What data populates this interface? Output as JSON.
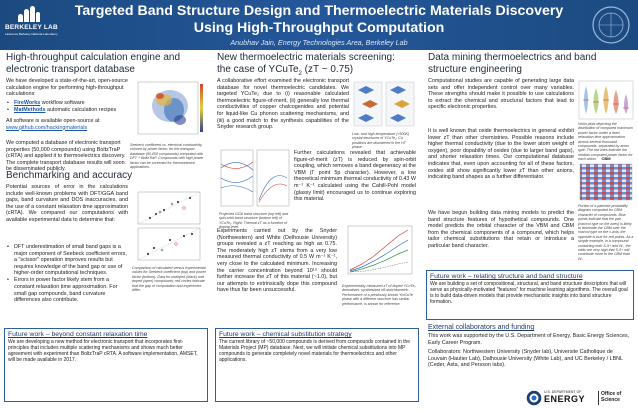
{
  "header": {
    "logo_name": "BERKELEY LAB",
    "logo_sub": "Lawrence Berkeley National Laboratory",
    "title_line1": "Targeted Band Structure Design and Thermoelectric Materials Discovery",
    "title_line2": "Using High-Throughput Computation",
    "subtitle": "Anubhav Jain, Energy Technologies Area, Berkeley Lab"
  },
  "col1": {
    "title_line1": "High-throughput calculation engine and",
    "title_line2": "electronic transport database",
    "intro": "We have developed a state-of-the-art, open-source calculation engine for performing high-throughput calculations:",
    "software": [
      {
        "name": "FireWorks",
        "desc": " workflow software"
      },
      {
        "name": "MatMethods",
        "desc": " automatic calculation recipes"
      }
    ],
    "available": "All software is available open-source at ",
    "github": "www.github.com/hackingmaterials",
    "database": "We computed a database of electronic transport properties (50,000 compounds) using BoltzTraP (cRTA) and applied it to thermoelectrics discovery. The complete transport database results will soon be disseminated publicly.",
    "fig1_caption": "Seebeck coefficient vs. electrical conductivity, colored by power factor, for the transport database (50,000 compounds) computed with DFT + BoltzTraP. Compounds with high power factor can be screened for thermoelectric applications.",
    "bench_title": "Benchmarking and accuracy",
    "bench_text": "Potential sources of error in the calculations include well-known problems with DFT/GGA band gaps, band curvature and DOS inaccuracies, and the use of a constant relaxation time approximation (cRTA). We compared our computations with available experimental data to determine that:",
    "bench_points": [
      "DFT underestimation of small band gaps is a major component of Seebeck coefficient errors, a \"scissor\" operation improves results but requires knowledge of the band gap or use of higher-order computational techniques.",
      "Errors in power factor likely stem from a constant relaxation time approximation. For small gap compounds, band curvature differences also contribute."
    ],
    "fig2_caption": "Comparison of calculated versus experimental values for Seebeck coefficient (top) and power factor (bottom). Data for undoped (black) and doped (open) compounds; red circles indicate that the gap of computation and experiment differ.",
    "future_title": "Future work – beyond constant relaxation time",
    "future_text": "We are developing a new method for electronic transport that incorporates first-principles that includes multiple scattering mechanisms and shows much better agreement with experiment than BoltzTraP cRTA. A software implementation, AMSET, will be made available in 2017."
  },
  "col2": {
    "title_line1": "New thermoelectric materials screening:",
    "title_line2_a": "the case of YCuTe",
    "title_sub": "2",
    "title_line2_b": " (zT ~ 0.75)",
    "intro": "A collaborative effort examined the electronic transport database for novel thermoelectric candidates. We targeted YCuTe₂ due to (i) reasonable calculated thermoelectric figure-of-merit, (ii) generally low thermal conductivities of copper chalcogenides and potential for liquid-like Cu phonon scattering mechanisms, and (iii) a good match to the synthesis capabilities of the Snyder research group.",
    "fig_struct_caption": "Low- and high-temperature (>500K) crystal structures of YCuTe₂. Cu positions are disordered in the HT phase.",
    "further": "Further calculations revealed that achievable figure-of-merit (zT) is reduced by spin-orbit coupling, which removes a band degeneracy at the VBM (Γ point 5p character). However, a low theoretical minimum thermal conductivity of 0.43 W m⁻¹ K⁻¹ calculated using the Cahill-Pohl model (glassy limit) encouraged us to continue exploring this material.",
    "fig_band_caption": "Projected GGA band structure (top left) and spin-orbit band structure (bottom left) of YCuTe₂. Right: Thermal zT as a function of doping level.",
    "experiments": "Experiments carried out by the Snyder (Northwestern) and White (Delhousie University) groups revealed a zT reaching as high as 0.75. The moderately high zT stems from a very low measured thermal conductivity of 0.5 W m⁻¹ K⁻¹, very close to the calculated minimum. Increasing the carrier concentration beyond 10¹⁹ should further increase the zT of this material (~1.0), but our attempts to extrinsically dope this compound have thus far been unsuccessful.",
    "fig_zt_caption": "Experimentally measured zT of doped YCuTe₂ derivatives, synthesized off-stoichiometric. Performance of a previously known YmCuTe phase with a different structure has similar performance, is shown for reference.",
    "future_title": "Future work – chemical substitution strategy",
    "future_text": "The current library of ~50,000 compounds is derived from compounds contained in the Materials Project (MP) database. Next, we will initiate chemical substitutions into MP compounds to generate completely novel materials for thermoelectrics and other applications."
  },
  "col3": {
    "title_line1": "Data mining thermoelectrics and band",
    "title_line2": "structure engineering",
    "intro": "Computational studies are capable of generating large data sets and offer independent control over many variables. These strengths should make it possible to use calculations to extract the chemical and structural factors that lead to specific electronic properties.",
    "oxide": "It is well known that oxide thermoelectrics in general exhibit lower zT than other chemistries. Possible reasons include higher thermal conductivity (due to the lower atom weight of oxygen), poor dopability of oxides (due to larger band gaps), and shorter relaxation times. Our computational database indicates that, even upon accounting for all of these factors, oxides still show significantly lower zT than other anions, indicating band shapes as a further differentiator.",
    "cbm": "We have begun building data mining models to predict the band structure features of hypothetical compounds. One model predicts the orbital character of the VBM and CBM from the chemical components of a compound, which helps tailor chemical substitutions that retain or introduce a particular band character.",
    "fig_violin_caption": "Violin plots depicting the distribution of computed maximum power factor under a fixed relaxation time approximation across several thousand compounds, separated by anion type. The red lines indicate the median computed power factor for each anion.",
    "heat_label": "CBM",
    "fig_heat_caption": "Portion of a pairwise probability diagram computed for CBM character of compounds. Blue points indicate that the pair (row/col type on the axes) is likely to dominate the CBM over the row/col type on the x-axis; the opposite is true for red points. As a simple example, in a compound containing both S-5+ and W-, the odds are very high that S-5+ will contribute more to the CBM than W-.",
    "future_title": "Future work – relating structure and band structure",
    "future_text": "We are building a set of compositional, structural, and band structure descriptors that will serve as physically-motivated \"features\" for machine learning algorithms. The overall goal is to build data-driven models that provide mechanistic insights into band structure formation.",
    "collab_title": "External collaborators and funding",
    "funding": "This work was supported by the U.S. Department of Energy, Basic Energy Sciences, Early Career Program.",
    "collab": "Collaborators: Northwestern University (Snyder lab), Universite Catholique de Louvain (Hautier Lab), Dalhousie University (White Lab), and UC Berkeley / LBNL (Ceder, Asta, and Persson labs).",
    "doe_us": "U.S. DEPARTMENT OF",
    "doe_energy": "ENERGY",
    "doe_office": "Office of Science"
  },
  "colors": {
    "header": "#1c4a80",
    "accent": "#2d5e9e",
    "link": "#1a56b0"
  }
}
